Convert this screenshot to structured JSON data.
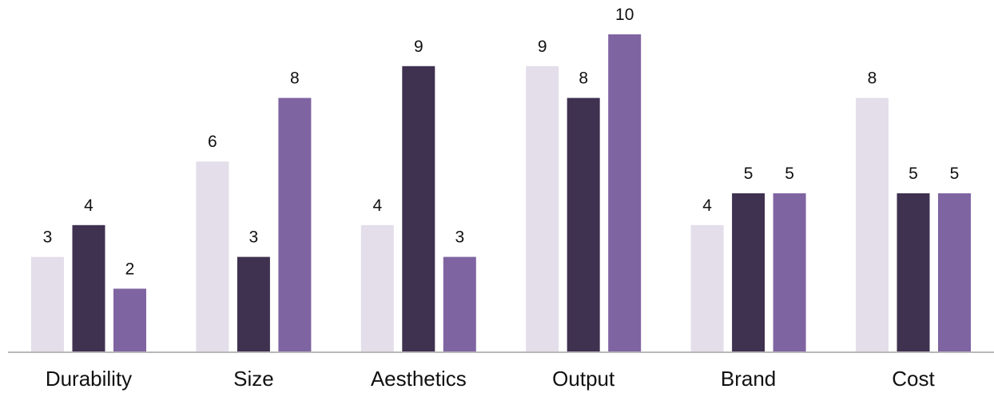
{
  "chart_data": {
    "type": "bar",
    "categories": [
      "Durability",
      "Size",
      "Aesthetics",
      "Output",
      "Brand",
      "Cost"
    ],
    "series": [
      {
        "values": [
          3,
          6,
          4,
          9,
          4,
          8
        ],
        "color": "#E3DEEA"
      },
      {
        "values": [
          4,
          3,
          9,
          8,
          5,
          5
        ],
        "color": "#3F3150"
      },
      {
        "values": [
          2,
          8,
          3,
          10,
          5,
          5
        ],
        "color": "#7F64A2"
      }
    ],
    "data_labels": true,
    "legend": "none",
    "grid": false,
    "ylim": [
      0,
      10
    ]
  }
}
